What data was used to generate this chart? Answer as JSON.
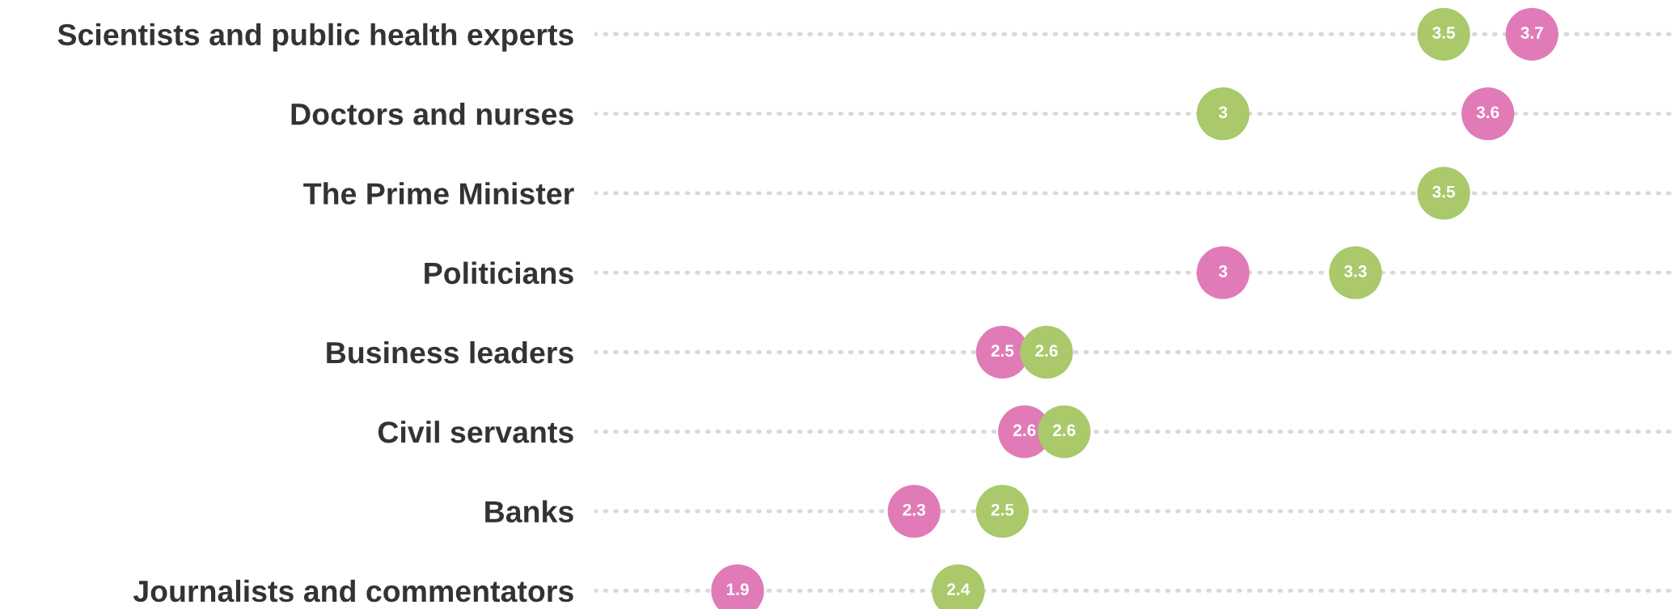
{
  "chart_data": {
    "type": "scatter",
    "categories": [
      "Scientists and public health experts",
      "Doctors and nurses",
      "The Prime Minister",
      "Politicians",
      "Business leaders",
      "Civil servants",
      "Banks",
      "Journalists and commentators"
    ],
    "orientation": "horizontal",
    "series": [
      {
        "color": "#e07bb8",
        "values": [
          3.7,
          3.6,
          null,
          3.0,
          2.5,
          2.55,
          2.3,
          1.9
        ],
        "value_labels": [
          "3.7",
          "3.6",
          null,
          "3",
          "2.5",
          "2.6",
          "2.3",
          "1.9"
        ]
      },
      {
        "color": "#a9c96a",
        "values": [
          3.5,
          3.0,
          3.5,
          3.3,
          2.6,
          2.64,
          2.5,
          2.4
        ],
        "value_labels": [
          "3.5",
          "3",
          "3.5",
          "3.3",
          "2.6",
          "2.6",
          "2.5",
          "2.4"
        ]
      }
    ],
    "tick_labels": "y",
    "grid": "y",
    "marker": "circle",
    "legend": false
  }
}
